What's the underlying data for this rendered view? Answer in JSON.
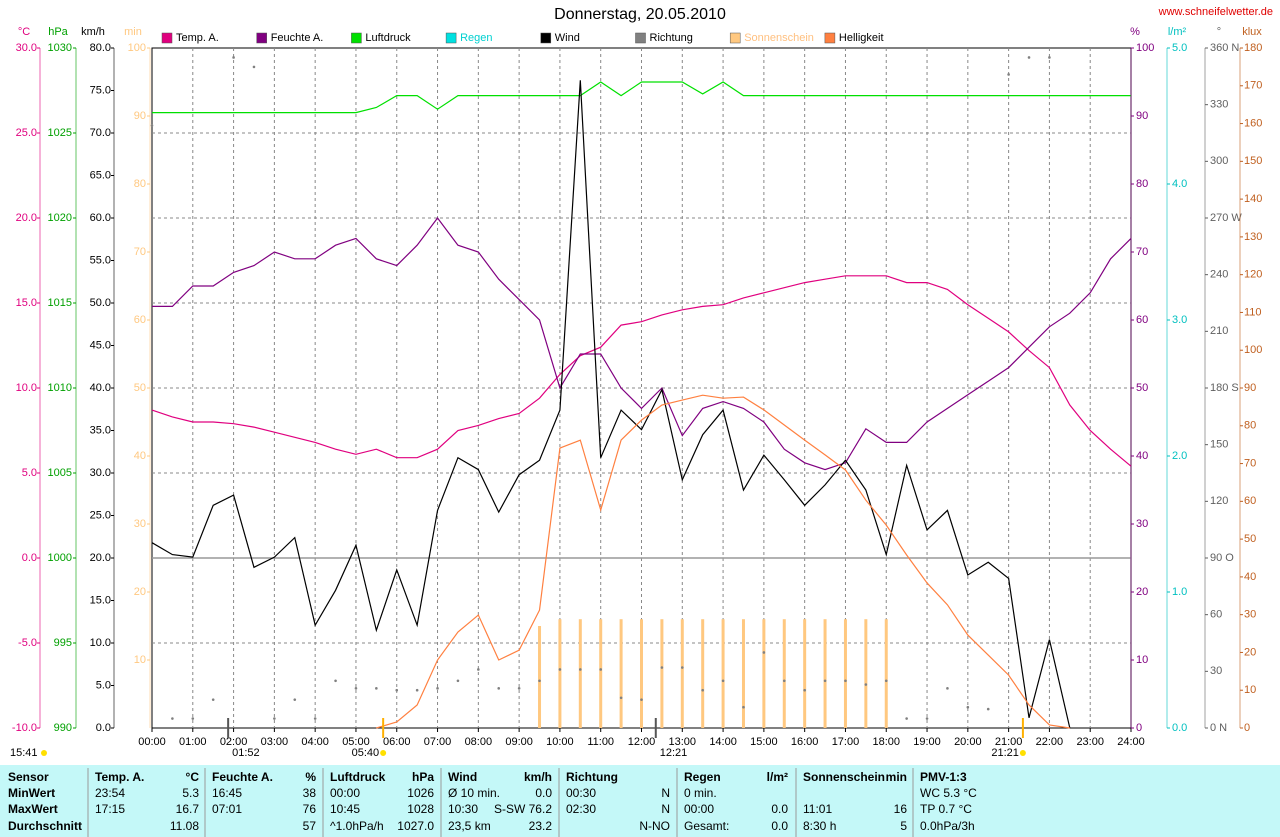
{
  "chart_data": {
    "type": "line",
    "title": "Donnerstag, 20.05.2010",
    "source": "www.schneifelwetter.de",
    "xlim": [
      0,
      24
    ],
    "xticks": [
      {
        "value": 0,
        "label": "00:00"
      },
      {
        "value": 1,
        "label": "01:00"
      },
      {
        "value": 2,
        "label": "02:00"
      },
      {
        "value": 3,
        "label": "03:00"
      },
      {
        "value": 4,
        "label": "04:00"
      },
      {
        "value": 5,
        "label": "05:00"
      },
      {
        "value": 6,
        "label": "06:00"
      },
      {
        "value": 7,
        "label": "07:00"
      },
      {
        "value": 8,
        "label": "08:00"
      },
      {
        "value": 9,
        "label": "09:00"
      },
      {
        "value": 10,
        "label": "10:00"
      },
      {
        "value": 11,
        "label": "11:00"
      },
      {
        "value": 12,
        "label": "12:00"
      },
      {
        "value": 13,
        "label": "13:00"
      },
      {
        "value": 14,
        "label": "14:00"
      },
      {
        "value": 15,
        "label": "15:00"
      },
      {
        "value": 16,
        "label": "16:00"
      },
      {
        "value": 17,
        "label": "17:00"
      },
      {
        "value": 18,
        "label": "18:00"
      },
      {
        "value": 19,
        "label": "19:00"
      },
      {
        "value": 20,
        "label": "20:00"
      },
      {
        "value": 21,
        "label": "21:00"
      },
      {
        "value": 22,
        "label": "22:00"
      },
      {
        "value": 23,
        "label": "23:00"
      },
      {
        "value": 24,
        "label": "24:00"
      }
    ],
    "grid": true,
    "grid_axis": 0,
    "zero_line": true,
    "axes": [
      {
        "unit": "°C",
        "side": "left",
        "color": "#e0007f",
        "lim": [
          -10,
          30
        ],
        "ticks": [
          {
            "value": -10,
            "label": "-10.0"
          },
          {
            "value": -5,
            "label": "-5.0"
          },
          {
            "value": 0,
            "label": "0.0"
          },
          {
            "value": 5,
            "label": "5.0"
          },
          {
            "value": 10,
            "label": "10.0"
          },
          {
            "value": 15,
            "label": "15.0"
          },
          {
            "value": 20,
            "label": "20.0"
          },
          {
            "value": 25,
            "label": "25.0"
          },
          {
            "value": 30,
            "label": "30.0"
          }
        ]
      },
      {
        "unit": "hPa",
        "side": "left",
        "color": "#00a000",
        "lim": [
          990,
          1030
        ],
        "ticks": [
          990,
          995,
          1000,
          1005,
          1010,
          1015,
          1020,
          1025,
          1030
        ]
      },
      {
        "unit": "km/h",
        "side": "left",
        "color": "#000000",
        "lim": [
          0,
          80
        ],
        "ticks": [
          {
            "value": 0,
            "label": "0.0"
          },
          {
            "value": 5,
            "label": "5.0"
          },
          {
            "value": 10,
            "label": "10.0"
          },
          {
            "value": 15,
            "label": "15.0"
          },
          {
            "value": 20,
            "label": "20.0"
          },
          {
            "value": 25,
            "label": "25.0"
          },
          {
            "value": 30,
            "label": "30.0"
          },
          {
            "value": 35,
            "label": "35.0"
          },
          {
            "value": 40,
            "label": "40.0"
          },
          {
            "value": 45,
            "label": "45.0"
          },
          {
            "value": 50,
            "label": "50.0"
          },
          {
            "value": 55,
            "label": "55.0"
          },
          {
            "value": 60,
            "label": "60.0"
          },
          {
            "value": 65,
            "label": "65.0"
          },
          {
            "value": 70,
            "label": "70.0"
          },
          {
            "value": 75,
            "label": "75.0"
          },
          {
            "value": 80,
            "label": "80.0"
          }
        ]
      },
      {
        "unit": "min",
        "side": "left",
        "color": "#ffc880",
        "lim": [
          0,
          100
        ],
        "ticks": [
          10,
          20,
          30,
          40,
          50,
          60,
          70,
          80,
          90,
          100
        ]
      },
      {
        "unit": "%",
        "side": "right",
        "color": "#800080",
        "lim": [
          0,
          100
        ],
        "ticks": [
          0,
          10,
          20,
          30,
          40,
          50,
          60,
          70,
          80,
          90,
          100
        ]
      },
      {
        "unit": "l/m²",
        "side": "right",
        "color": "#00c0c0",
        "lim": [
          0,
          5
        ],
        "ticks": [
          {
            "value": 0,
            "label": "0.0"
          },
          {
            "value": 1,
            "label": "1.0"
          },
          {
            "value": 2,
            "label": "2.0"
          },
          {
            "value": 3,
            "label": "3.0"
          },
          {
            "value": 4,
            "label": "4.0"
          },
          {
            "value": 5,
            "label": "5.0"
          }
        ]
      },
      {
        "unit": "°",
        "side": "right",
        "color": "#606060",
        "lim": [
          0,
          360
        ],
        "ticks": [
          {
            "value": 0,
            "label": "0 N"
          },
          30,
          60,
          {
            "value": 90,
            "label": "90 O"
          },
          120,
          150,
          {
            "value": 180,
            "label": "180 S"
          },
          210,
          240,
          {
            "value": 270,
            "label": "270 W"
          },
          300,
          330,
          {
            "value": 360,
            "label": "360 N"
          }
        ]
      },
      {
        "unit": "klux",
        "side": "right",
        "color": "#c06020",
        "lim": [
          0,
          180
        ],
        "ticks": [
          0,
          10,
          20,
          30,
          40,
          50,
          60,
          70,
          80,
          90,
          100,
          110,
          120,
          130,
          140,
          150,
          160,
          170,
          180
        ]
      }
    ],
    "x": [
      0,
      0.5,
      1,
      1.5,
      2,
      2.5,
      3,
      3.5,
      4,
      4.5,
      5,
      5.5,
      6,
      6.5,
      7,
      7.5,
      8,
      8.5,
      9,
      9.5,
      10,
      10.5,
      11,
      11.5,
      12,
      12.5,
      13,
      13.5,
      14,
      14.5,
      15,
      15.5,
      16,
      16.5,
      17,
      17.5,
      18,
      18.5,
      19,
      19.5,
      20,
      20.5,
      21,
      21.5,
      22,
      22.5,
      23,
      23.5,
      24
    ],
    "series": [
      {
        "name": "Temp. A.",
        "type": "line",
        "axis": 0,
        "color": "#e0007f",
        "values": [
          8.7,
          8.3,
          8.0,
          8.0,
          7.9,
          7.7,
          7.4,
          7.1,
          6.8,
          6.4,
          6.1,
          6.4,
          5.9,
          5.9,
          6.4,
          7.5,
          7.8,
          8.2,
          8.5,
          9.4,
          10.8,
          11.9,
          12.4,
          13.7,
          13.9,
          14.3,
          14.6,
          14.8,
          14.9,
          15.3,
          15.6,
          15.9,
          16.2,
          16.4,
          16.6,
          16.6,
          16.6,
          16.2,
          16.2,
          15.8,
          14.9,
          14.1,
          13.3,
          12.2,
          11.2,
          9.0,
          7.5,
          6.4,
          5.4
        ]
      },
      {
        "name": "Feuchte A.",
        "type": "line",
        "axis": 4,
        "color": "#800080",
        "values": [
          62,
          62,
          65,
          65,
          67,
          68,
          70,
          69,
          69,
          71,
          72,
          69,
          68,
          71,
          75,
          71,
          70,
          66,
          63,
          60,
          50,
          55,
          55,
          50,
          47,
          50,
          43,
          47,
          48,
          47,
          45,
          41,
          39,
          38,
          39,
          44,
          42,
          42,
          45,
          47,
          49,
          51,
          53,
          56,
          59,
          61,
          64,
          69,
          72
        ]
      },
      {
        "name": "Luftdruck",
        "type": "line",
        "axis": 1,
        "color": "#00e000",
        "values": [
          1026.2,
          1026.2,
          1026.2,
          1026.2,
          1026.2,
          1026.2,
          1026.2,
          1026.2,
          1026.2,
          1026.2,
          1026.2,
          1026.5,
          1027.2,
          1027.2,
          1026.4,
          1027.2,
          1027.2,
          1027.2,
          1027.2,
          1027.2,
          1027.2,
          1027.2,
          1028,
          1027.2,
          1028,
          1028,
          1028,
          1027.3,
          1028,
          1027.2,
          1027.2,
          1027.2,
          1027.2,
          1027.2,
          1027.2,
          1027.2,
          1027.2,
          1027.2,
          1027.2,
          1027.2,
          1027.2,
          1027.2,
          1027.2,
          1027.2,
          1027.2,
          1027.2,
          1027.2,
          1027.2,
          1027.2
        ]
      },
      {
        "name": "Regen",
        "type": "bar",
        "axis": 5,
        "color": "#00e0e0",
        "label_color": "#00d0d0",
        "values": [
          0,
          0,
          0,
          0,
          0,
          0,
          0,
          0,
          0,
          0,
          0,
          0,
          0,
          0,
          0,
          0,
          0,
          0,
          0,
          0,
          0,
          0,
          0,
          0,
          0,
          0,
          0,
          0,
          0,
          0,
          0,
          0,
          0,
          0,
          0,
          0,
          0,
          0,
          0,
          0,
          0,
          0,
          0,
          0,
          0,
          0,
          0,
          0,
          0
        ]
      },
      {
        "name": "Wind",
        "type": "line",
        "axis": 2,
        "color": "#000000",
        "values": [
          21.8,
          20.4,
          20.1,
          26.2,
          27.4,
          18.9,
          20.1,
          22.4,
          12.1,
          16.2,
          21.5,
          11.5,
          18.6,
          12.1,
          25.6,
          31.8,
          30.4,
          25.4,
          29.8,
          31.5,
          37.4,
          76.2,
          31.8,
          37.4,
          35.1,
          39.8,
          29.2,
          34.5,
          37.4,
          28.0,
          32.1,
          29.2,
          26.2,
          28.6,
          31.5,
          28.0,
          20.4,
          30.9,
          23.3,
          25.6,
          18.0,
          19.5,
          17.6,
          1.2,
          10.4,
          0,
          null,
          null,
          null
        ]
      },
      {
        "name": "Richtung",
        "type": "scatter",
        "axis": 6,
        "color": "#808080",
        "values": [
          319,
          5,
          5,
          15,
          355,
          350,
          5,
          15,
          5,
          25,
          21,
          21,
          20,
          20,
          21,
          25,
          31,
          21,
          21,
          25,
          31,
          31,
          31,
          16,
          15,
          32,
          32,
          20,
          25,
          11,
          40,
          25,
          20,
          25,
          25,
          23,
          25,
          5,
          5,
          21,
          11,
          10,
          346,
          355,
          355,
          null,
          null,
          null,
          null
        ]
      },
      {
        "name": "Sonnenschein",
        "type": "bar",
        "axis": 3,
        "color": "#ffc880",
        "label_color": "#ffc080",
        "values": [
          null,
          null,
          null,
          null,
          null,
          null,
          null,
          null,
          null,
          null,
          null,
          null,
          null,
          null,
          null,
          null,
          null,
          null,
          null,
          15,
          16,
          16,
          16,
          16,
          16,
          16,
          16,
          16,
          16,
          16,
          16,
          16,
          16,
          16,
          16,
          16,
          16,
          null,
          null,
          null,
          null,
          null,
          null,
          null,
          null,
          null,
          null,
          null,
          null
        ]
      },
      {
        "name": "Helligkeit",
        "type": "line",
        "axis": 7,
        "color": "#ff8040",
        "values": [
          null,
          null,
          null,
          null,
          null,
          null,
          null,
          null,
          null,
          null,
          null,
          0,
          1.6,
          6.1,
          18,
          25.4,
          29.9,
          18,
          20.6,
          31.2,
          74.1,
          76.2,
          57.7,
          76.2,
          81.5,
          85.5,
          86.8,
          88.1,
          87.3,
          87.6,
          84.2,
          80.2,
          76.2,
          72.3,
          68.3,
          60.3,
          53.7,
          45.8,
          38.4,
          32.6,
          24.6,
          19.3,
          14.0,
          6.1,
          0.8,
          0,
          null,
          null,
          null
        ]
      }
    ],
    "annotations": [
      {
        "text": "15:41"
      },
      {
        "text": "01:52",
        "x": 1.8667
      },
      {
        "text": "05:40",
        "x": 5.6667
      },
      {
        "text": "12:21",
        "x": 12.35
      },
      {
        "text": "21:21",
        "x": 21.35
      }
    ]
  },
  "stats": {
    "row_labels": [
      "Sensor",
      "MinWert",
      "MaxWert",
      "Durchschnitt"
    ],
    "groups": [
      {
        "name": "Temp. A.",
        "unit": "°C",
        "rows": [
          {
            "l": "23:54",
            "r": "5.3"
          },
          {
            "l": "17:15",
            "r": "16.7"
          },
          {
            "r": "11.08"
          }
        ]
      },
      {
        "name": "Feuchte A.",
        "unit": "%",
        "rows": [
          {
            "l": "16:45",
            "r": "38"
          },
          {
            "l": "07:01",
            "r": "76"
          },
          {
            "r": "57"
          }
        ]
      },
      {
        "name": "Luftdruck",
        "unit": "hPa",
        "rows": [
          {
            "l": "00:00",
            "r": "1026"
          },
          {
            "l": "10:45",
            "r": "1028"
          },
          {
            "l": "^1.0hPa/h",
            "r": "1027.0"
          }
        ]
      },
      {
        "name": "Wind",
        "unit": "km/h",
        "rows": [
          {
            "l": "Ø 10 min.",
            "r": "0.0"
          },
          {
            "l": "10:30",
            "r": "S-SW 76.2"
          },
          {
            "l": "23,5 km",
            "r": "23.2"
          }
        ]
      },
      {
        "name": "Richtung",
        "rows": [
          {
            "l": "00:30",
            "r": "N"
          },
          {
            "l": "02:30",
            "r": "N"
          },
          {
            "r": "N-NO"
          }
        ]
      },
      {
        "name": "Regen",
        "unit": "l/m²",
        "rows": [
          {
            "l": "0 min."
          },
          {
            "l": "00:00",
            "r": "0.0"
          },
          {
            "l": "Gesamt:",
            "r": "0.0"
          }
        ]
      },
      {
        "name": "Sonnenschein",
        "unit": "min",
        "rows": [
          null,
          {
            "l": "11:01",
            "r": "16"
          },
          {
            "l": "8:30 h",
            "r": "5"
          }
        ]
      },
      {
        "name": "PMV-1:3",
        "rows": [
          {
            "l": "WC 5.3 °C"
          },
          {
            "l": "TP 0.7 °C"
          },
          {
            "l": "0.0hPa/3h"
          }
        ]
      }
    ]
  }
}
